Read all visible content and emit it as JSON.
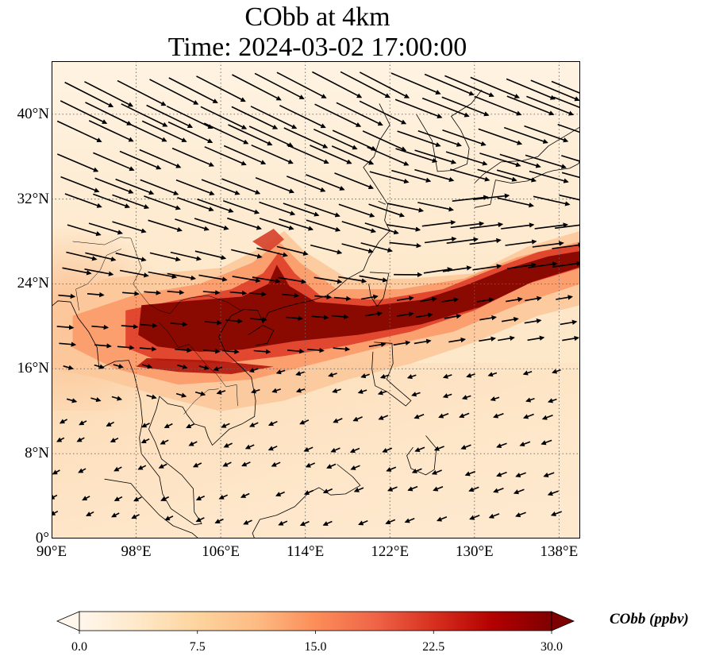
{
  "title": {
    "line1": "CObb at 4km",
    "line2": "Time: 2024-03-02 17:00:00"
  },
  "map": {
    "type": "filled-contour-with-wind-vectors",
    "variable": "CObb",
    "level": "4km",
    "lon_range": [
      90,
      140
    ],
    "lat_range": [
      0,
      45
    ],
    "lon_ticks": [
      "90°E",
      "98°E",
      "106°E",
      "114°E",
      "122°E",
      "130°E",
      "138°E"
    ],
    "lat_ticks": [
      "40°N",
      "32°N",
      "24°N",
      "16°N",
      "8°N",
      "0°"
    ],
    "lon_tick_values": [
      90,
      98,
      106,
      114,
      122,
      130,
      138
    ],
    "lat_tick_values": [
      40,
      32,
      24,
      16,
      8,
      0
    ],
    "gridlines": "dotted",
    "colormap": "OrRd",
    "plume": {
      "description_values": "peak concentration >= 30 ppbv band from ~98°E to 140°E between ~17°N and 27°N",
      "core_path_lonlat": [
        [
          98.5,
          20.5
        ],
        [
          104,
          21.5
        ],
        [
          110,
          21
        ],
        [
          114,
          21.2
        ],
        [
          120,
          20.5
        ],
        [
          126,
          21
        ],
        [
          130,
          22.5
        ],
        [
          134,
          24.5
        ],
        [
          138,
          26
        ],
        [
          140,
          27
        ]
      ]
    },
    "wind": {
      "north_region": "strong westerly to northwesterly flow",
      "south_region": "weak easterly to northeasterly flow"
    }
  },
  "colorbar": {
    "min": 0.0,
    "max": 30.0,
    "ticks": [
      "0.0",
      "7.5",
      "15.0",
      "22.5",
      "30.0"
    ],
    "tick_values": [
      0,
      7.5,
      15,
      22.5,
      30
    ],
    "label": "CObb (ppbv)",
    "extend": "both",
    "colors": [
      "#fff7ec",
      "#fee8c8",
      "#fdd49e",
      "#fdbb84",
      "#fc8d59",
      "#ef6548",
      "#d7301f",
      "#b30000",
      "#7f0000"
    ]
  }
}
